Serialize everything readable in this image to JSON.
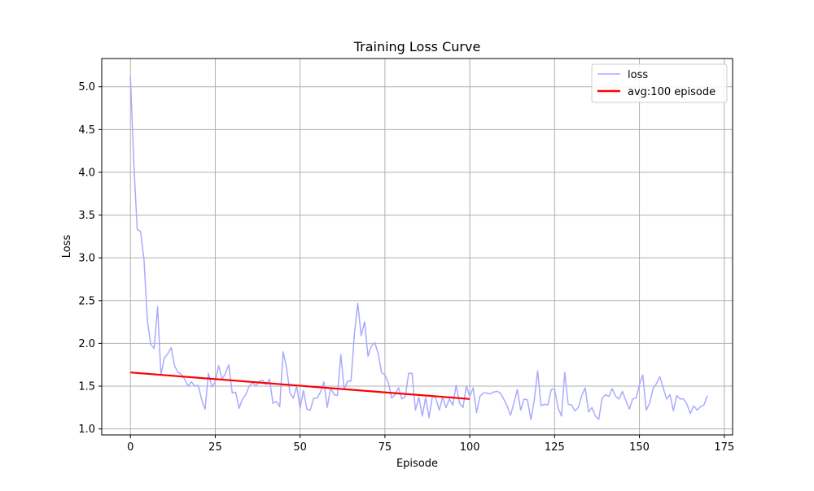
{
  "chart_data": {
    "type": "line",
    "title": "Training Loss Curve",
    "xlabel": "Episode",
    "ylabel": "Loss",
    "xlim": [
      -8.45,
      177.45
    ],
    "ylim": [
      0.93,
      5.33
    ],
    "xticks": [
      0,
      25,
      50,
      75,
      100,
      125,
      150,
      175
    ],
    "yticks": [
      1.0,
      1.5,
      2.0,
      2.5,
      3.0,
      3.5,
      4.0,
      4.5,
      5.0
    ],
    "grid": true,
    "legend_position": "top-right",
    "series": [
      {
        "name": "loss",
        "color": "#aaaaff",
        "x_start": 0,
        "values": [
          5.12,
          4.1,
          3.33,
          3.31,
          2.98,
          2.26,
          1.99,
          1.94,
          2.43,
          1.63,
          1.83,
          1.88,
          1.95,
          1.74,
          1.66,
          1.64,
          1.58,
          1.5,
          1.55,
          1.5,
          1.51,
          1.34,
          1.23,
          1.65,
          1.49,
          1.55,
          1.74,
          1.58,
          1.65,
          1.75,
          1.42,
          1.43,
          1.24,
          1.35,
          1.4,
          1.5,
          1.54,
          1.5,
          1.56,
          1.57,
          1.52,
          1.58,
          1.3,
          1.32,
          1.26,
          1.9,
          1.72,
          1.42,
          1.36,
          1.5,
          1.24,
          1.45,
          1.23,
          1.22,
          1.36,
          1.36,
          1.43,
          1.55,
          1.25,
          1.48,
          1.4,
          1.39,
          1.87,
          1.46,
          1.56,
          1.56,
          2.11,
          2.47,
          2.09,
          2.25,
          1.85,
          1.97,
          2.01,
          1.88,
          1.66,
          1.63,
          1.54,
          1.36,
          1.4,
          1.48,
          1.35,
          1.38,
          1.65,
          1.65,
          1.22,
          1.37,
          1.15,
          1.37,
          1.13,
          1.39,
          1.36,
          1.22,
          1.37,
          1.25,
          1.35,
          1.28,
          1.51,
          1.3,
          1.25,
          1.5,
          1.38,
          1.48,
          1.19,
          1.38,
          1.42,
          1.42,
          1.41,
          1.43,
          1.44,
          1.42,
          1.35,
          1.27,
          1.16,
          1.3,
          1.46,
          1.22,
          1.35,
          1.34,
          1.11,
          1.33,
          1.68,
          1.27,
          1.29,
          1.28,
          1.46,
          1.47,
          1.25,
          1.15,
          1.66,
          1.29,
          1.28,
          1.21,
          1.25,
          1.39,
          1.48,
          1.2,
          1.25,
          1.15,
          1.11,
          1.36,
          1.4,
          1.38,
          1.47,
          1.38,
          1.35,
          1.44,
          1.33,
          1.23,
          1.35,
          1.36,
          1.52,
          1.63,
          1.22,
          1.3,
          1.47,
          1.53,
          1.61,
          1.48,
          1.35,
          1.4,
          1.21,
          1.39,
          1.35,
          1.35,
          1.29,
          1.18,
          1.27,
          1.22,
          1.26,
          1.28,
          1.39
        ]
      },
      {
        "name": "avg:100 episode",
        "color": "#ff0000",
        "x": [
          0,
          100
        ],
        "values": [
          1.66,
          1.35
        ]
      }
    ]
  }
}
